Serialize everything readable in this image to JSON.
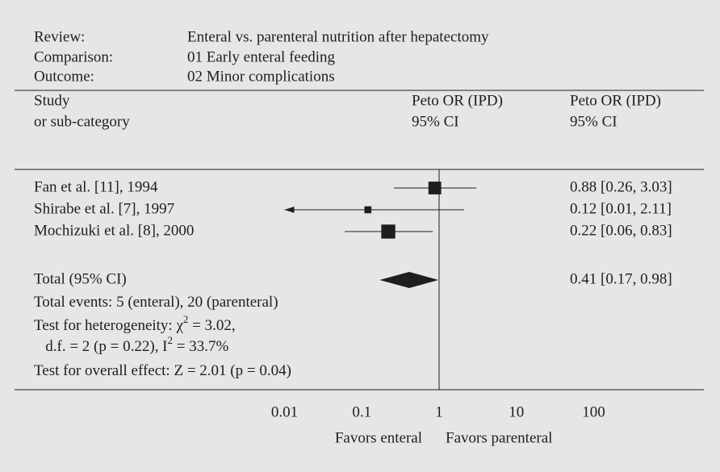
{
  "chart_data": {
    "type": "forest",
    "header": {
      "review_label": "Review:",
      "review": "Enteral vs. parenteral nutrition after hepatectomy",
      "comparison_label": "Comparison:",
      "comparison": "01 Early enteral feeding",
      "outcome_label": "Outcome:",
      "outcome": "02 Minor complications"
    },
    "columns": {
      "study": [
        "Study",
        "or sub-category"
      ],
      "plot": [
        "Peto OR (IPD)",
        "95% CI"
      ],
      "estimate": [
        "Peto OR (IPD)",
        "95% CI"
      ]
    },
    "studies": [
      {
        "name": "Fan et al. [11], 1994",
        "or": 0.88,
        "lo": 0.26,
        "hi": 3.03,
        "weight": 40,
        "label": "0.88 [0.26, 3.03]"
      },
      {
        "name": "Shirabe et al. [7], 1997",
        "or": 0.12,
        "lo": 0.01,
        "hi": 2.11,
        "weight": 12,
        "label": "0.12 [0.01, 2.11]"
      },
      {
        "name": "Mochizuki et al. [8], 2000",
        "or": 0.22,
        "lo": 0.06,
        "hi": 0.83,
        "weight": 48,
        "label": "0.22 [0.06, 0.83]"
      }
    ],
    "total": {
      "name": "Total (95% CI)",
      "or": 0.41,
      "lo": 0.17,
      "hi": 0.98,
      "label": "0.41 [0.17, 0.98]"
    },
    "notes": [
      [
        "Total events: 5 (enteral), 20 (parenteral)"
      ],
      [
        "Test for heterogeneity: χ",
        "2",
        " = 3.02,"
      ],
      [
        "   d.f. = 2 (p = 0.22), I",
        "2",
        " = 33.7%"
      ],
      [
        "Test for overall effect: Z = 2.01 (p = 0.04)"
      ]
    ],
    "xscale": "log",
    "xlim": [
      0.01,
      100
    ],
    "xticks": [
      0.01,
      0.1,
      1,
      10,
      100
    ],
    "reference_line": 1,
    "favors_left": "Favors enteral",
    "favors_right": "Favors parenteral",
    "color": "#1e1e1e"
  }
}
